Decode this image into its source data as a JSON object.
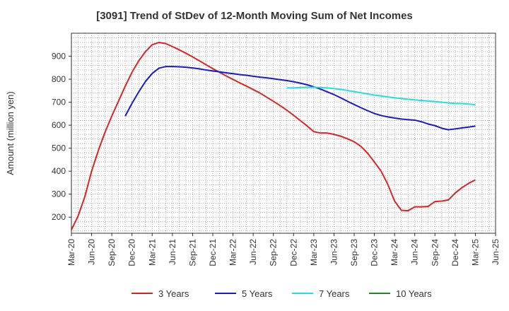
{
  "chart_data": {
    "type": "line",
    "title": "[3091]  Trend of StDev of 12-Month Moving Sum of Net Incomes",
    "ylabel": "Amount (million yen)",
    "xlabel": "",
    "ylim": [
      130,
      1000
    ],
    "yticks": [
      200,
      300,
      400,
      500,
      600,
      700,
      800,
      900
    ],
    "x_range": [
      "2020-03",
      "2025-06"
    ],
    "xticks": [
      "Mar-20",
      "Jun-20",
      "Sep-20",
      "Dec-20",
      "Mar-21",
      "Jun-21",
      "Sep-21",
      "Dec-21",
      "Mar-22",
      "Jun-22",
      "Sep-22",
      "Dec-22",
      "Mar-23",
      "Jun-23",
      "Sep-23",
      "Dec-23",
      "Mar-24",
      "Jun-24",
      "Sep-24",
      "Dec-24",
      "Mar-25",
      "Jun-25"
    ],
    "grid": true,
    "legend_position": "bottom",
    "series": [
      {
        "name": "3 Years",
        "color": "#dd2222",
        "points": [
          [
            "2020-03",
            145
          ],
          [
            "2020-04",
            205
          ],
          [
            "2020-05",
            290
          ],
          [
            "2020-06",
            400
          ],
          [
            "2020-07",
            490
          ],
          [
            "2020-08",
            570
          ],
          [
            "2020-09",
            640
          ],
          [
            "2020-10",
            705
          ],
          [
            "2020-11",
            770
          ],
          [
            "2020-12",
            830
          ],
          [
            "2021-01",
            880
          ],
          [
            "2021-02",
            920
          ],
          [
            "2021-03",
            950
          ],
          [
            "2021-04",
            960
          ],
          [
            "2021-05",
            955
          ],
          [
            "2021-06",
            942
          ],
          [
            "2021-07",
            928
          ],
          [
            "2021-08",
            913
          ],
          [
            "2021-09",
            897
          ],
          [
            "2021-10",
            880
          ],
          [
            "2021-11",
            863
          ],
          [
            "2021-12",
            846
          ],
          [
            "2022-01",
            830
          ],
          [
            "2022-02",
            814
          ],
          [
            "2022-03",
            799
          ],
          [
            "2022-04",
            784
          ],
          [
            "2022-05",
            770
          ],
          [
            "2022-06",
            755
          ],
          [
            "2022-07",
            740
          ],
          [
            "2022-08",
            722
          ],
          [
            "2022-09",
            704
          ],
          [
            "2022-10",
            685
          ],
          [
            "2022-11",
            665
          ],
          [
            "2022-12",
            643
          ],
          [
            "2023-01",
            620
          ],
          [
            "2023-02",
            597
          ],
          [
            "2023-03",
            572
          ],
          [
            "2023-04",
            566
          ],
          [
            "2023-05",
            566
          ],
          [
            "2023-06",
            560
          ],
          [
            "2023-07",
            552
          ],
          [
            "2023-08",
            541
          ],
          [
            "2023-09",
            528
          ],
          [
            "2023-10",
            508
          ],
          [
            "2023-11",
            478
          ],
          [
            "2023-12",
            440
          ],
          [
            "2024-01",
            400
          ],
          [
            "2024-02",
            342
          ],
          [
            "2024-03",
            270
          ],
          [
            "2024-04",
            230
          ],
          [
            "2024-05",
            228
          ],
          [
            "2024-06",
            245
          ],
          [
            "2024-07",
            245
          ],
          [
            "2024-08",
            247
          ],
          [
            "2024-09",
            268
          ],
          [
            "2024-10",
            270
          ],
          [
            "2024-11",
            275
          ],
          [
            "2024-12",
            305
          ],
          [
            "2025-01",
            328
          ],
          [
            "2025-02",
            347
          ],
          [
            "2025-03",
            362
          ]
        ]
      },
      {
        "name": "5 Years",
        "color": "#1a1acc",
        "points": [
          [
            "2020-11",
            640
          ],
          [
            "2020-12",
            695
          ],
          [
            "2021-01",
            745
          ],
          [
            "2021-02",
            790
          ],
          [
            "2021-03",
            825
          ],
          [
            "2021-04",
            848
          ],
          [
            "2021-05",
            855
          ],
          [
            "2021-06",
            855
          ],
          [
            "2021-07",
            854
          ],
          [
            "2021-08",
            852
          ],
          [
            "2021-09",
            849
          ],
          [
            "2021-10",
            845
          ],
          [
            "2021-11",
            840
          ],
          [
            "2021-12",
            836
          ],
          [
            "2022-01",
            832
          ],
          [
            "2022-02",
            828
          ],
          [
            "2022-03",
            824
          ],
          [
            "2022-04",
            820
          ],
          [
            "2022-05",
            817
          ],
          [
            "2022-06",
            813
          ],
          [
            "2022-07",
            809
          ],
          [
            "2022-08",
            806
          ],
          [
            "2022-09",
            802
          ],
          [
            "2022-10",
            798
          ],
          [
            "2022-11",
            794
          ],
          [
            "2022-12",
            789
          ],
          [
            "2023-01",
            783
          ],
          [
            "2023-02",
            776
          ],
          [
            "2023-03",
            767
          ],
          [
            "2023-04",
            757
          ],
          [
            "2023-05",
            745
          ],
          [
            "2023-06",
            733
          ],
          [
            "2023-07",
            719
          ],
          [
            "2023-08",
            704
          ],
          [
            "2023-09",
            690
          ],
          [
            "2023-10",
            676
          ],
          [
            "2023-11",
            663
          ],
          [
            "2023-12",
            651
          ],
          [
            "2024-01",
            642
          ],
          [
            "2024-02",
            636
          ],
          [
            "2024-03",
            631
          ],
          [
            "2024-04",
            627
          ],
          [
            "2024-05",
            624
          ],
          [
            "2024-06",
            622
          ],
          [
            "2024-07",
            615
          ],
          [
            "2024-08",
            605
          ],
          [
            "2024-09",
            598
          ],
          [
            "2024-10",
            587
          ],
          [
            "2024-11",
            580
          ],
          [
            "2024-12",
            584
          ],
          [
            "2025-01",
            588
          ],
          [
            "2025-02",
            592
          ],
          [
            "2025-03",
            596
          ]
        ]
      },
      {
        "name": "7 Years",
        "color": "#22e0e0",
        "points": [
          [
            "2022-11",
            762
          ],
          [
            "2022-12",
            762
          ],
          [
            "2023-01",
            764
          ],
          [
            "2023-02",
            765
          ],
          [
            "2023-03",
            765
          ],
          [
            "2023-04",
            764
          ],
          [
            "2023-05",
            762
          ],
          [
            "2023-06",
            759
          ],
          [
            "2023-07",
            756
          ],
          [
            "2023-08",
            751
          ],
          [
            "2023-09",
            746
          ],
          [
            "2023-10",
            741
          ],
          [
            "2023-11",
            736
          ],
          [
            "2023-12",
            731
          ],
          [
            "2024-01",
            727
          ],
          [
            "2024-02",
            723
          ],
          [
            "2024-03",
            719
          ],
          [
            "2024-04",
            716
          ],
          [
            "2024-05",
            713
          ],
          [
            "2024-06",
            710
          ],
          [
            "2024-07",
            708
          ],
          [
            "2024-08",
            705
          ],
          [
            "2024-09",
            703
          ],
          [
            "2024-10",
            700
          ],
          [
            "2024-11",
            697
          ],
          [
            "2024-12",
            695
          ],
          [
            "2025-01",
            694
          ],
          [
            "2025-02",
            692
          ],
          [
            "2025-03",
            689
          ]
        ]
      },
      {
        "name": "10 Years",
        "color": "#228822",
        "points": []
      }
    ]
  }
}
